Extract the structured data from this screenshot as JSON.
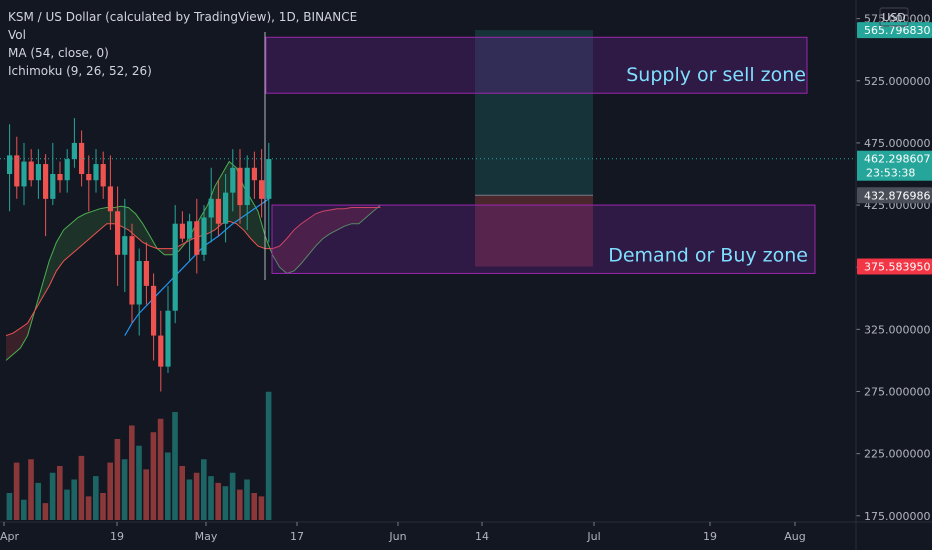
{
  "header": {
    "title": "KSM / US Dollar (calculated by TradingView), 1D, BINANCE",
    "vol_label": "Vol",
    "ma_label": "MA (54, close, 0)",
    "ichimoku_label": "Ichimoku (9, 26, 52, 26)",
    "currency_button": "USD"
  },
  "colors": {
    "background": "#131722",
    "up": "#26a69a",
    "down": "#ef5350",
    "ma": "#2196f3",
    "zone_border": "#9c27b0",
    "zone_fill": "#4a1a5a",
    "zone_text": "#7fdfff",
    "span_a": "#4caf50",
    "span_b": "#ef5350"
  },
  "chart_data": {
    "type": "candlestick",
    "title": "KSM / US Dollar (calculated by TradingView), 1D, BINANCE",
    "x_tick_labels": [
      "Apr",
      "19",
      "May",
      "17",
      "Jun",
      "14",
      "Jul",
      "19",
      "Aug"
    ],
    "y_ticks": [
      175,
      225,
      275,
      325,
      375,
      425,
      475,
      525,
      575
    ],
    "y_tick_labels": [
      "175.000000",
      "225.000000",
      "275.000000",
      "325.000000",
      "375.000000",
      "425.000000",
      "475.000000",
      "525.000000",
      "575.000000"
    ],
    "ylim": [
      170,
      590
    ],
    "candles": [
      {
        "o": 450,
        "h": 490,
        "l": 420,
        "c": 465
      },
      {
        "o": 465,
        "h": 480,
        "l": 430,
        "c": 440
      },
      {
        "o": 440,
        "h": 475,
        "l": 425,
        "c": 460
      },
      {
        "o": 460,
        "h": 470,
        "l": 440,
        "c": 445
      },
      {
        "o": 445,
        "h": 470,
        "l": 430,
        "c": 458
      },
      {
        "o": 458,
        "h": 466,
        "l": 400,
        "c": 430
      },
      {
        "o": 430,
        "h": 475,
        "l": 425,
        "c": 450
      },
      {
        "o": 450,
        "h": 460,
        "l": 435,
        "c": 445
      },
      {
        "o": 445,
        "h": 470,
        "l": 435,
        "c": 462
      },
      {
        "o": 462,
        "h": 495,
        "l": 455,
        "c": 475
      },
      {
        "o": 475,
        "h": 485,
        "l": 440,
        "c": 450
      },
      {
        "o": 450,
        "h": 465,
        "l": 420,
        "c": 445
      },
      {
        "o": 445,
        "h": 470,
        "l": 435,
        "c": 458
      },
      {
        "o": 458,
        "h": 468,
        "l": 430,
        "c": 440
      },
      {
        "o": 440,
        "h": 465,
        "l": 405,
        "c": 420
      },
      {
        "o": 420,
        "h": 440,
        "l": 360,
        "c": 385
      },
      {
        "o": 385,
        "h": 430,
        "l": 355,
        "c": 400
      },
      {
        "o": 400,
        "h": 410,
        "l": 330,
        "c": 345
      },
      {
        "o": 345,
        "h": 390,
        "l": 320,
        "c": 380
      },
      {
        "o": 380,
        "h": 395,
        "l": 345,
        "c": 360
      },
      {
        "o": 360,
        "h": 370,
        "l": 300,
        "c": 320
      },
      {
        "o": 320,
        "h": 340,
        "l": 275,
        "c": 295
      },
      {
        "o": 295,
        "h": 360,
        "l": 290,
        "c": 340
      },
      {
        "o": 340,
        "h": 425,
        "l": 330,
        "c": 410
      },
      {
        "o": 410,
        "h": 420,
        "l": 395,
        "c": 398
      },
      {
        "o": 398,
        "h": 418,
        "l": 380,
        "c": 412
      },
      {
        "o": 412,
        "h": 430,
        "l": 370,
        "c": 385
      },
      {
        "o": 385,
        "h": 425,
        "l": 380,
        "c": 415
      },
      {
        "o": 415,
        "h": 455,
        "l": 395,
        "c": 430
      },
      {
        "o": 430,
        "h": 445,
        "l": 400,
        "c": 410
      },
      {
        "o": 410,
        "h": 450,
        "l": 395,
        "c": 435
      },
      {
        "o": 435,
        "h": 470,
        "l": 420,
        "c": 455
      },
      {
        "o": 455,
        "h": 470,
        "l": 410,
        "c": 425
      },
      {
        "o": 425,
        "h": 465,
        "l": 405,
        "c": 455
      },
      {
        "o": 455,
        "h": 468,
        "l": 430,
        "c": 445
      },
      {
        "o": 445,
        "h": 470,
        "l": 415,
        "c": 430
      },
      {
        "o": 430,
        "h": 475,
        "l": 395,
        "c": 462
      }
    ],
    "volume": [
      40,
      85,
      30,
      90,
      55,
      25,
      70,
      80,
      45,
      60,
      95,
      35,
      65,
      40,
      85,
      120,
      90,
      140,
      110,
      75,
      130,
      150,
      100,
      160,
      80,
      60,
      70,
      90,
      65,
      55,
      50,
      70,
      45,
      60,
      40,
      35,
      190
    ],
    "ma_values": [
      null,
      null,
      null,
      null,
      null,
      null,
      null,
      null,
      null,
      null,
      null,
      null,
      null,
      null,
      null,
      null,
      320,
      330,
      338,
      344,
      350,
      356,
      362,
      368,
      374,
      380,
      386,
      392,
      396,
      400,
      405,
      410,
      414,
      418,
      422,
      426,
      430
    ],
    "ichimoku_span_a": [
      300,
      305,
      310,
      320,
      340,
      360,
      380,
      395,
      405,
      410,
      415,
      418,
      420,
      422,
      423,
      423,
      424,
      423,
      418,
      410,
      400,
      390,
      385,
      385,
      388,
      395,
      405,
      415,
      425,
      440,
      450,
      460,
      455,
      440,
      430,
      420,
      400,
      385,
      375,
      370,
      372,
      378,
      385,
      392,
      398,
      402,
      405,
      408,
      410,
      410,
      415,
      420,
      425
    ],
    "ichimoku_span_b": [
      320,
      322,
      326,
      330,
      340,
      350,
      360,
      372,
      380,
      385,
      390,
      395,
      400,
      405,
      410,
      410,
      408,
      405,
      400,
      395,
      392,
      390,
      390,
      390,
      392,
      395,
      398,
      400,
      402,
      405,
      410,
      412,
      410,
      405,
      398,
      392,
      390,
      390,
      392,
      398,
      405,
      410,
      414,
      418,
      420,
      421,
      422,
      422,
      423,
      423,
      423,
      423,
      423
    ],
    "supply_zone": {
      "top": 560,
      "bottom": 515,
      "label": "Supply or sell zone"
    },
    "demand_zone": {
      "top": 425,
      "bottom": 370,
      "label": "Demand  or Buy zone"
    },
    "position": {
      "entry": 432.876986,
      "target": 565.79683,
      "stop": 375.58395
    },
    "current_price": 462.298607,
    "last_line_price": 462
  },
  "price_labels": {
    "target": "565.796830",
    "current": "462.298607",
    "countdown": "23:53:38",
    "entry": "432.876986",
    "stop": "375.583950"
  }
}
